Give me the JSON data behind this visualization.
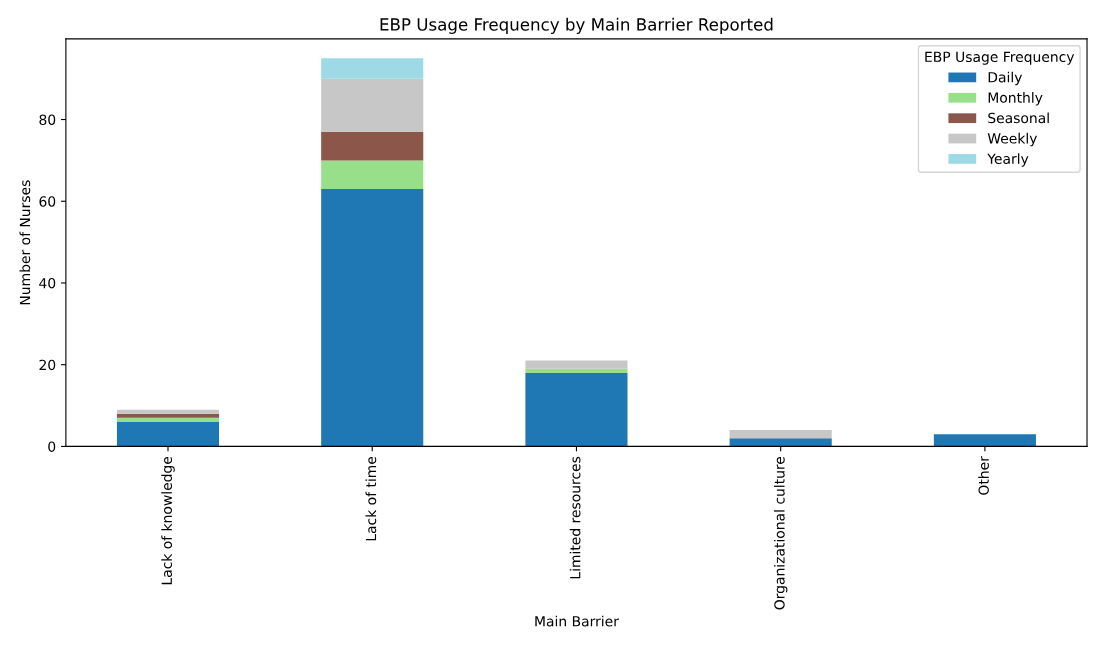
{
  "chart_data": {
    "type": "bar",
    "title": "EBP Usage Frequency by Main Barrier Reported",
    "xlabel": "Main Barrier",
    "ylabel": "Number of Nurses",
    "legend_title": "EBP Usage Frequency",
    "categories": [
      "Lack of knowledge",
      "Lack of time",
      "Limited resources",
      "Organizational culture",
      "Other"
    ],
    "stacked": true,
    "series": [
      {
        "name": "Daily",
        "color": "#1f77b4",
        "values": [
          6,
          63,
          18,
          2,
          3
        ]
      },
      {
        "name": "Monthly",
        "color": "#98df8a",
        "values": [
          1,
          7,
          1,
          0,
          0
        ]
      },
      {
        "name": "Seasonal",
        "color": "#8c564b",
        "values": [
          1,
          7,
          0,
          0,
          0
        ]
      },
      {
        "name": "Weekly",
        "color": "#c7c7c7",
        "values": [
          1,
          13,
          2,
          2,
          0
        ]
      },
      {
        "name": "Yearly",
        "color": "#9edae5",
        "values": [
          0,
          5,
          0,
          0,
          0
        ]
      }
    ],
    "ylim": [
      0,
      99.75
    ],
    "yticks": [
      0,
      20,
      40,
      60,
      80
    ],
    "grid": false,
    "legend": "top right"
  }
}
